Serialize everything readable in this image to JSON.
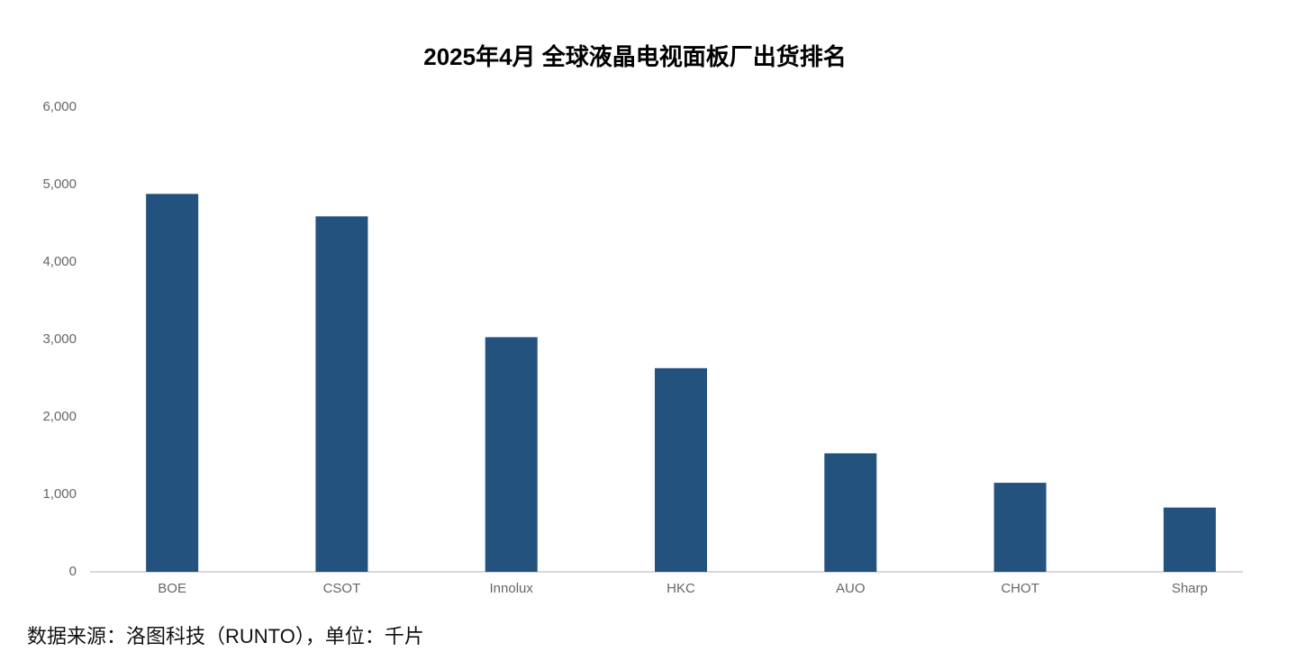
{
  "chart_data": {
    "type": "bar",
    "title": "2025年4月 全球液晶电视面板厂出货排名",
    "categories": [
      "BOE",
      "CSOT",
      "Innolux",
      "HKC",
      "AUO",
      "CHOT",
      "Sharp"
    ],
    "values": [
      4880,
      4590,
      3030,
      2630,
      1530,
      1150,
      830
    ],
    "color": "#23527f",
    "ylim": [
      0,
      6000
    ],
    "yticks": [
      0,
      {
        "value": 1000,
        "label": "1,000"
      },
      {
        "value": 2000,
        "label": "2,000"
      },
      {
        "value": 3000,
        "label": "3,000"
      },
      {
        "value": 4000,
        "label": "4,000"
      },
      {
        "value": 5000,
        "label": "5,000"
      },
      {
        "value": 6000,
        "label": "6,000"
      }
    ],
    "grid": false,
    "source": "数据来源：洛图科技（RUNTO），单位：千片"
  }
}
